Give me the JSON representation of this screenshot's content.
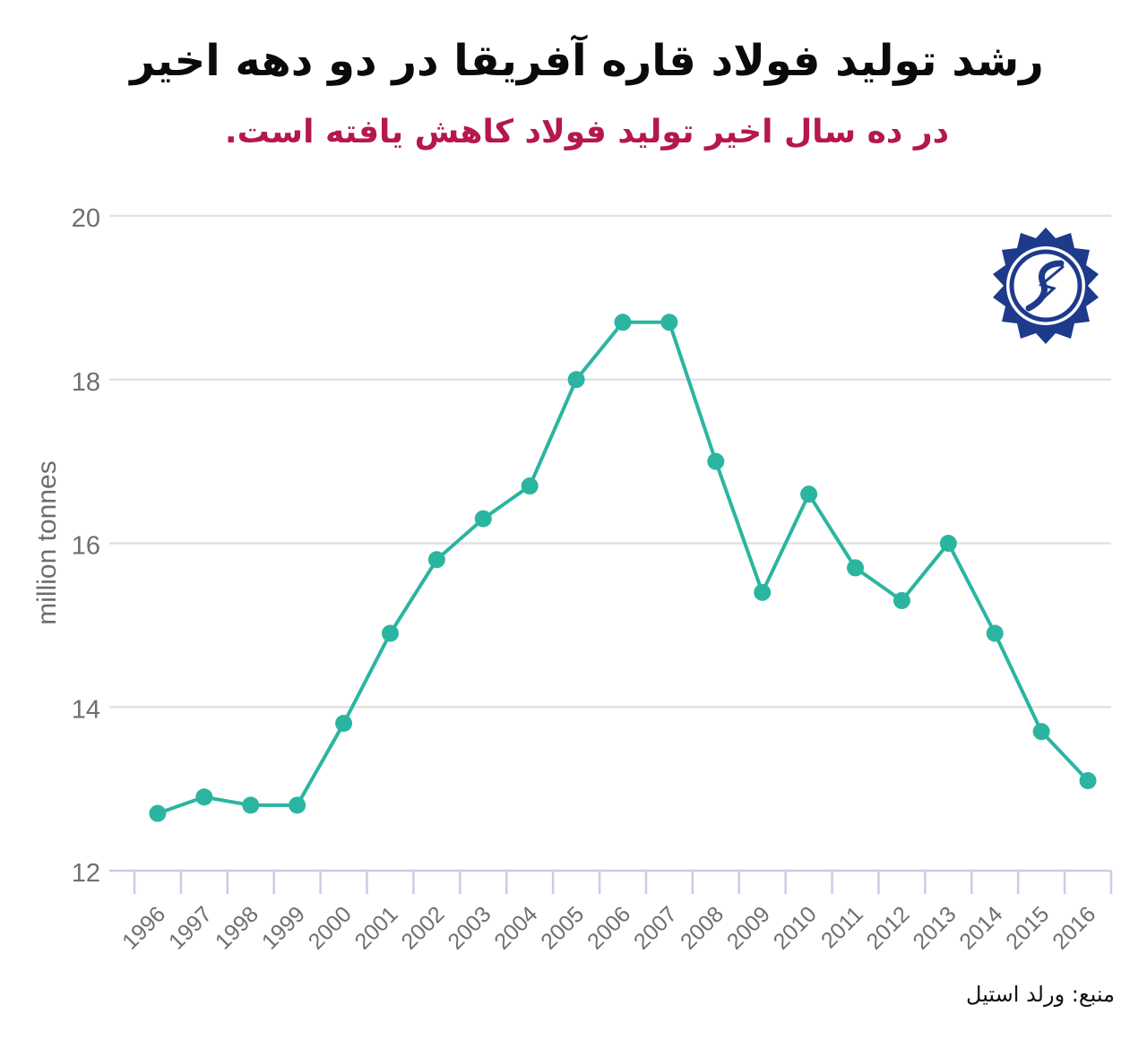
{
  "header": {
    "title": "رشد تولید فولاد قاره آفریقا در دو دهه اخیر",
    "subtitle": "در ده سال اخیر تولید فولاد کاهش یافته است."
  },
  "footer": {
    "source": "منبع: ورلد استیل"
  },
  "logo": {
    "icon": "steel-emblem-icon",
    "color": "#1e3a8a"
  },
  "chart_data": {
    "type": "line",
    "title": "",
    "xlabel": "",
    "ylabel": "million tonnes",
    "ylim": [
      12,
      20
    ],
    "yticks": [
      12,
      14,
      16,
      18,
      20
    ],
    "grid": true,
    "categories": [
      "1996",
      "1997",
      "1998",
      "1999",
      "2000",
      "2001",
      "2002",
      "2003",
      "2004",
      "2005",
      "2006",
      "2007",
      "2008",
      "2009",
      "2010",
      "2011",
      "2012",
      "2013",
      "2014",
      "2015",
      "2016"
    ],
    "series": [
      {
        "values": [
          12.7,
          12.9,
          12.8,
          12.8,
          13.8,
          14.9,
          15.8,
          16.3,
          16.7,
          18.0,
          18.7,
          18.7,
          17.0,
          15.4,
          16.6,
          15.7,
          15.3,
          16.0,
          14.9,
          13.7,
          13.1
        ],
        "color": "#2bb5a0"
      }
    ]
  }
}
